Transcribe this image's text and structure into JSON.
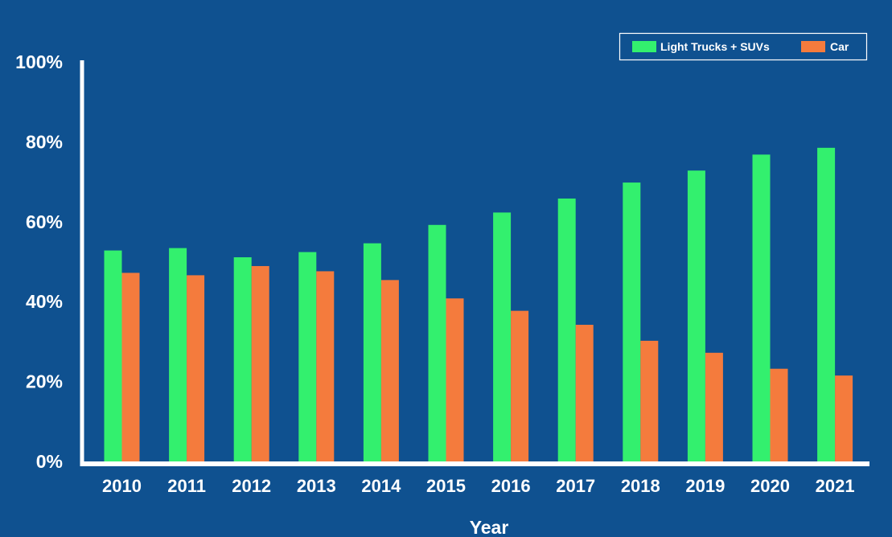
{
  "chart_data": {
    "type": "bar",
    "title": "",
    "xlabel": "Year",
    "ylabel": "",
    "ylim": [
      0,
      100
    ],
    "y_ticks": [
      "0%",
      "20%",
      "40%",
      "60%",
      "80%",
      "100%"
    ],
    "y_tick_values": [
      0,
      20,
      40,
      60,
      80,
      100
    ],
    "grid": false,
    "legend_position": "top-right",
    "categories": [
      "2010",
      "2011",
      "2012",
      "2013",
      "2014",
      "2015",
      "2016",
      "2017",
      "2018",
      "2019",
      "2020",
      "2021"
    ],
    "series": [
      {
        "name": "Light Trucks + SUVs",
        "color": "#33f06e",
        "values": [
          52.8,
          53.4,
          51.1,
          52.4,
          54.6,
          59.2,
          62.3,
          65.8,
          69.8,
          72.8,
          76.8,
          78.5
        ]
      },
      {
        "name": "Car",
        "color": "#f47b3d",
        "values": [
          47.2,
          46.6,
          48.9,
          47.6,
          45.4,
          40.8,
          37.7,
          34.2,
          30.2,
          27.2,
          23.2,
          21.5
        ]
      }
    ],
    "colors": {
      "background": "#0f5190",
      "axis": "#ffffff",
      "text": "#ffffff"
    }
  }
}
